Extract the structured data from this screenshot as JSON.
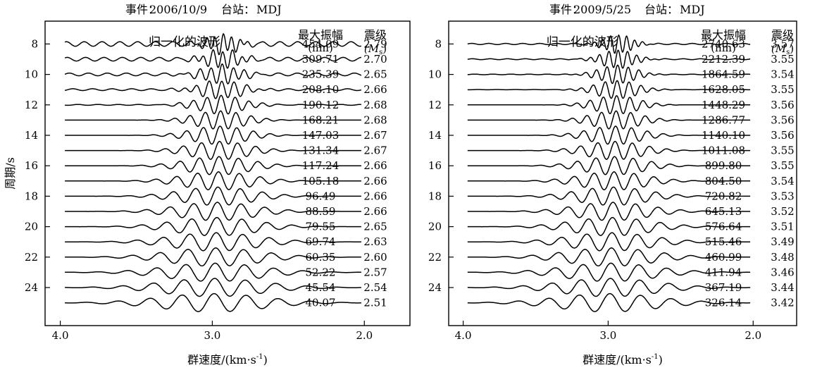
{
  "chart_data": [
    {
      "type": "waveform-stack",
      "header": {
        "event_label": "事件：",
        "event": "2006/10/9",
        "station_label": "台站：",
        "station": "MDJ"
      },
      "panel_title": "归一化的波形",
      "amp_header": [
        "最大振幅",
        "(nm)"
      ],
      "mag_header": [
        "震级",
        "(M",
        "s",
        ")"
      ],
      "ylabel": "周期/s",
      "xlabel": "群速度/(km·s",
      "xlabel_sup": "-1",
      "xlabel_end": ")",
      "xticks": [
        "4.0",
        "3.0",
        "2.0"
      ],
      "xlim": [
        4.1,
        1.7
      ],
      "yticks": [
        "8",
        "10",
        "12",
        "14",
        "16",
        "18",
        "20",
        "22",
        "24"
      ],
      "ylim": [
        6.5,
        26.5
      ],
      "periods": [
        8,
        9,
        10,
        11,
        12,
        13,
        14,
        15,
        16,
        17,
        18,
        19,
        20,
        21,
        22,
        23,
        24,
        25
      ],
      "max_amplitude_nm": [
        "454.09",
        "309.71",
        "235.39",
        "208.10",
        "190.12",
        "168.21",
        "147.03",
        "131.34",
        "117.24",
        "105.18",
        "96.49",
        "88.59",
        "79.55",
        "69.74",
        "60.35",
        "52.22",
        "45.54",
        "40.07"
      ],
      "magnitude": [
        "2.79",
        "2.70",
        "2.65",
        "2.66",
        "2.68",
        "2.68",
        "2.67",
        "2.67",
        "2.66",
        "2.66",
        "2.66",
        "2.66",
        "2.65",
        "2.63",
        "2.60",
        "2.57",
        "2.54",
        "2.51"
      ]
    },
    {
      "type": "waveform-stack",
      "header": {
        "event_label": "事件：",
        "event": "2009/5/25",
        "station_label": "台站：",
        "station": "MDJ"
      },
      "panel_title": "归一化的波形",
      "amp_header": [
        "最大振幅",
        "(nm)"
      ],
      "mag_header": [
        "震级",
        "(M",
        "s",
        ")"
      ],
      "ylabel": "",
      "xlabel": "群速度/(km·s",
      "xlabel_sup": "-1",
      "xlabel_end": ")",
      "xticks": [
        "4.0",
        "3.0",
        "2.0"
      ],
      "xlim": [
        4.1,
        1.7
      ],
      "yticks": [
        "8",
        "10",
        "12",
        "14",
        "16",
        "18",
        "20",
        "22",
        "24"
      ],
      "ylim": [
        6.5,
        26.5
      ],
      "periods": [
        8,
        9,
        10,
        11,
        12,
        13,
        14,
        15,
        16,
        17,
        18,
        19,
        20,
        21,
        22,
        23,
        24,
        25
      ],
      "max_amplitude_nm": [
        "2740.63",
        "2212.39",
        "1864.59",
        "1628.05",
        "1448.29",
        "1286.77",
        "1140.10",
        "1011.08",
        "899.80",
        "804.50",
        "720.82",
        "645.13",
        "576.64",
        "515.46",
        "460.99",
        "411.94",
        "367.19",
        "326.14"
      ],
      "magnitude": [
        "3.57",
        "3.55",
        "3.54",
        "3.55",
        "3.56",
        "3.56",
        "3.56",
        "3.55",
        "3.55",
        "3.54",
        "3.53",
        "3.52",
        "3.51",
        "3.49",
        "3.48",
        "3.46",
        "3.44",
        "3.42"
      ]
    }
  ]
}
